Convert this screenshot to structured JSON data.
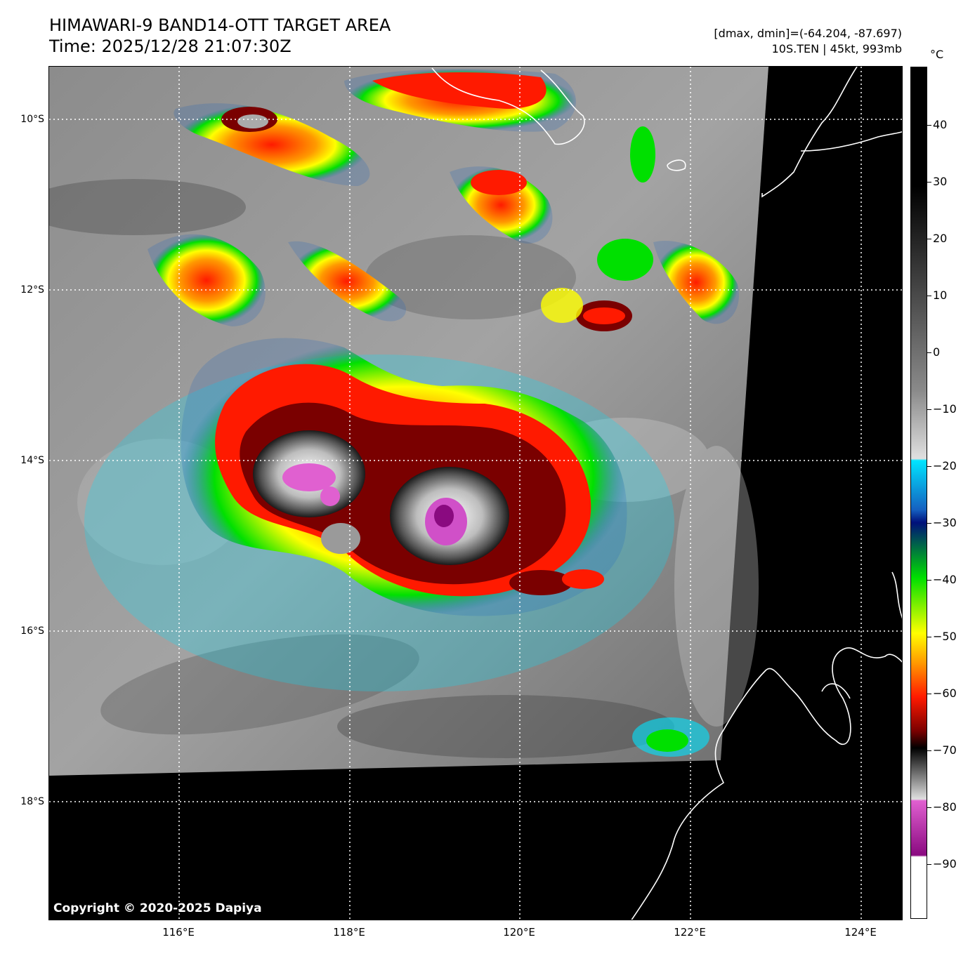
{
  "header": {
    "title_line1": "HIMAWARI-9 BAND14-OTT TARGET AREA",
    "title_line2": "Time: 2025/12/28 21:07:30Z",
    "info_line1": "[dmax, dmin]=(-64.204, -87.697)",
    "info_line2": "10S.TEN | 45kt, 993mb"
  },
  "map": {
    "copyright": "Copyright © 2020-2025 Dapiya",
    "lat_labels": [
      "10°S",
      "12°S",
      "14°S",
      "16°S",
      "18°S"
    ],
    "lon_labels": [
      "116°E",
      "118°E",
      "120°E",
      "122°E",
      "124°E"
    ]
  },
  "colorbar": {
    "unit": "°C",
    "ticks": [
      "40",
      "30",
      "20",
      "10",
      "0",
      "−10",
      "−20",
      "−30",
      "−40",
      "−50",
      "−60",
      "−70",
      "−80",
      "−90"
    ],
    "colors": {
      "warm": "#000000",
      "mid": "#8a8a8a",
      "cold_gray": "#e0e0e0",
      "cyan": "#00e5ff",
      "blue": "#1560c0",
      "navy": "#00107a",
      "green": "#00e000",
      "yellow": "#ffff00",
      "orange": "#ff9900",
      "red": "#ff1a00",
      "darkred": "#7a0000",
      "magenta": "#e060d0",
      "purple": "#8a0a80"
    }
  }
}
